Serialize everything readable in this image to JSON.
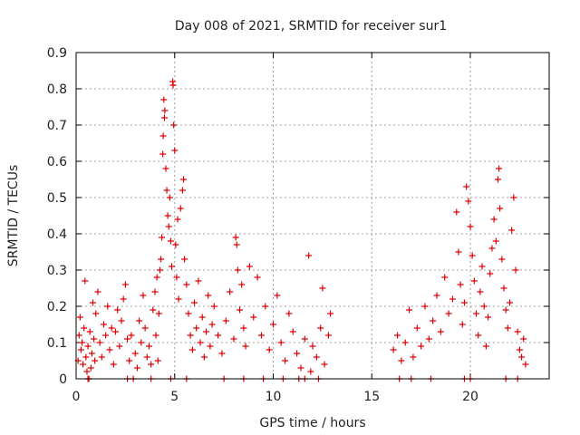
{
  "chart_data": {
    "type": "scatter",
    "title": "Day 008 of 2021, SRMTID for receiver sur1",
    "xlabel": "GPS time / hours",
    "ylabel": "SRMTID / TECUs",
    "xlim": [
      0,
      24
    ],
    "ylim": [
      0,
      0.9
    ],
    "x_ticks": [
      0,
      5,
      10,
      15,
      20
    ],
    "x_tick_labels": [
      "0",
      "5",
      "10",
      "15",
      "20"
    ],
    "y_ticks": [
      0,
      0.1,
      0.2,
      0.3,
      0.4,
      0.5,
      0.6,
      0.7,
      0.8,
      0.9
    ],
    "y_tick_labels": [
      "0",
      "0.1",
      "0.2",
      "0.3",
      "0.4",
      "0.5",
      "0.6",
      "0.7",
      "0.8",
      "0.9"
    ],
    "grid": true,
    "marker": "+",
    "marker_color": "#e00000",
    "series": [
      {
        "name": "SRMTID",
        "points": [
          [
            0.1,
            0.05
          ],
          [
            0.15,
            0.12
          ],
          [
            0.2,
            0.17
          ],
          [
            0.25,
            0.08
          ],
          [
            0.3,
            0.1
          ],
          [
            0.35,
            0.04
          ],
          [
            0.4,
            0.14
          ],
          [
            0.45,
            0.27
          ],
          [
            0.5,
            0.06
          ],
          [
            0.55,
            0.02
          ],
          [
            0.6,
            0.09
          ],
          [
            0.65,
            0.0
          ],
          [
            0.7,
            0.13
          ],
          [
            0.75,
            0.03
          ],
          [
            0.8,
            0.07
          ],
          [
            0.85,
            0.21
          ],
          [
            0.9,
            0.11
          ],
          [
            0.95,
            0.05
          ],
          [
            1.0,
            0.18
          ],
          [
            1.1,
            0.24
          ],
          [
            1.2,
            0.1
          ],
          [
            1.3,
            0.06
          ],
          [
            1.4,
            0.15
          ],
          [
            1.5,
            0.12
          ],
          [
            1.6,
            0.2
          ],
          [
            1.7,
            0.08
          ],
          [
            1.8,
            0.14
          ],
          [
            1.9,
            0.04
          ],
          [
            2.0,
            0.13
          ],
          [
            2.1,
            0.19
          ],
          [
            2.2,
            0.09
          ],
          [
            2.3,
            0.16
          ],
          [
            2.4,
            0.22
          ],
          [
            2.5,
            0.26
          ],
          [
            2.6,
            0.11
          ],
          [
            2.7,
            0.05
          ],
          [
            2.8,
            0.12
          ],
          [
            2.9,
            0.0
          ],
          [
            3.0,
            0.07
          ],
          [
            3.1,
            0.03
          ],
          [
            3.2,
            0.16
          ],
          [
            3.3,
            0.1
          ],
          [
            3.4,
            0.23
          ],
          [
            3.5,
            0.14
          ],
          [
            3.6,
            0.06
          ],
          [
            3.7,
            0.09
          ],
          [
            3.8,
            0.04
          ],
          [
            3.9,
            0.19
          ],
          [
            4.0,
            0.24
          ],
          [
            4.05,
            0.12
          ],
          [
            4.1,
            0.28
          ],
          [
            4.15,
            0.05
          ],
          [
            4.2,
            0.18
          ],
          [
            4.25,
            0.3
          ],
          [
            4.3,
            0.33
          ],
          [
            4.35,
            0.39
          ],
          [
            4.4,
            0.62
          ],
          [
            4.42,
            0.67
          ],
          [
            4.45,
            0.77
          ],
          [
            4.48,
            0.72
          ],
          [
            4.5,
            0.74
          ],
          [
            4.55,
            0.58
          ],
          [
            4.6,
            0.52
          ],
          [
            4.65,
            0.45
          ],
          [
            4.7,
            0.42
          ],
          [
            4.75,
            0.5
          ],
          [
            4.8,
            0.38
          ],
          [
            4.85,
            0.31
          ],
          [
            4.9,
            0.82
          ],
          [
            4.92,
            0.81
          ],
          [
            4.95,
            0.7
          ],
          [
            5.0,
            0.63
          ],
          [
            5.05,
            0.37
          ],
          [
            5.1,
            0.28
          ],
          [
            5.15,
            0.44
          ],
          [
            5.2,
            0.22
          ],
          [
            5.3,
            0.47
          ],
          [
            5.4,
            0.52
          ],
          [
            5.45,
            0.55
          ],
          [
            5.5,
            0.33
          ],
          [
            5.6,
            0.26
          ],
          [
            5.7,
            0.18
          ],
          [
            5.8,
            0.12
          ],
          [
            5.9,
            0.08
          ],
          [
            6.0,
            0.21
          ],
          [
            6.1,
            0.14
          ],
          [
            6.2,
            0.27
          ],
          [
            6.3,
            0.1
          ],
          [
            6.4,
            0.17
          ],
          [
            6.5,
            0.06
          ],
          [
            6.6,
            0.13
          ],
          [
            6.7,
            0.23
          ],
          [
            6.8,
            0.09
          ],
          [
            6.9,
            0.15
          ],
          [
            7.0,
            0.2
          ],
          [
            7.2,
            0.12
          ],
          [
            7.4,
            0.07
          ],
          [
            7.6,
            0.16
          ],
          [
            7.8,
            0.24
          ],
          [
            8.0,
            0.11
          ],
          [
            8.1,
            0.39
          ],
          [
            8.15,
            0.37
          ],
          [
            8.2,
            0.3
          ],
          [
            8.3,
            0.19
          ],
          [
            8.4,
            0.26
          ],
          [
            8.5,
            0.14
          ],
          [
            8.6,
            0.09
          ],
          [
            8.8,
            0.31
          ],
          [
            9.0,
            0.17
          ],
          [
            9.2,
            0.28
          ],
          [
            9.4,
            0.12
          ],
          [
            9.6,
            0.2
          ],
          [
            9.8,
            0.08
          ],
          [
            10.0,
            0.15
          ],
          [
            10.2,
            0.23
          ],
          [
            10.4,
            0.1
          ],
          [
            10.6,
            0.05
          ],
          [
            10.8,
            0.18
          ],
          [
            11.0,
            0.13
          ],
          [
            11.2,
            0.07
          ],
          [
            11.4,
            0.03
          ],
          [
            11.6,
            0.11
          ],
          [
            11.8,
            0.34
          ],
          [
            11.9,
            0.02
          ],
          [
            12.0,
            0.09
          ],
          [
            12.2,
            0.06
          ],
          [
            12.4,
            0.14
          ],
          [
            12.5,
            0.25
          ],
          [
            12.6,
            0.04
          ],
          [
            12.8,
            0.12
          ],
          [
            12.9,
            0.18
          ],
          [
            16.1,
            0.08
          ],
          [
            16.3,
            0.12
          ],
          [
            16.5,
            0.05
          ],
          [
            16.7,
            0.1
          ],
          [
            16.9,
            0.19
          ],
          [
            17.1,
            0.06
          ],
          [
            17.3,
            0.14
          ],
          [
            17.5,
            0.09
          ],
          [
            17.7,
            0.2
          ],
          [
            17.9,
            0.11
          ],
          [
            18.1,
            0.16
          ],
          [
            18.3,
            0.23
          ],
          [
            18.5,
            0.13
          ],
          [
            18.7,
            0.28
          ],
          [
            18.9,
            0.18
          ],
          [
            19.1,
            0.22
          ],
          [
            19.3,
            0.46
          ],
          [
            19.4,
            0.35
          ],
          [
            19.5,
            0.26
          ],
          [
            19.6,
            0.15
          ],
          [
            19.7,
            0.21
          ],
          [
            19.8,
            0.53
          ],
          [
            19.9,
            0.49
          ],
          [
            20.0,
            0.42
          ],
          [
            20.1,
            0.34
          ],
          [
            20.2,
            0.27
          ],
          [
            20.3,
            0.18
          ],
          [
            20.4,
            0.12
          ],
          [
            20.5,
            0.24
          ],
          [
            20.6,
            0.31
          ],
          [
            20.7,
            0.2
          ],
          [
            20.8,
            0.09
          ],
          [
            20.9,
            0.17
          ],
          [
            21.0,
            0.29
          ],
          [
            21.1,
            0.36
          ],
          [
            21.2,
            0.44
          ],
          [
            21.3,
            0.38
          ],
          [
            21.4,
            0.55
          ],
          [
            21.45,
            0.58
          ],
          [
            21.5,
            0.47
          ],
          [
            21.6,
            0.33
          ],
          [
            21.7,
            0.25
          ],
          [
            21.8,
            0.19
          ],
          [
            21.9,
            0.14
          ],
          [
            22.0,
            0.21
          ],
          [
            22.1,
            0.41
          ],
          [
            22.2,
            0.5
          ],
          [
            22.3,
            0.3
          ],
          [
            22.4,
            0.13
          ],
          [
            22.5,
            0.08
          ],
          [
            22.6,
            0.06
          ],
          [
            22.7,
            0.11
          ],
          [
            22.8,
            0.04
          ],
          [
            0.6,
            0.0
          ],
          [
            2.6,
            0.0
          ],
          [
            3.8,
            0.0
          ],
          [
            4.8,
            0.0
          ],
          [
            5.6,
            0.0
          ],
          [
            7.5,
            0.0
          ],
          [
            8.5,
            0.0
          ],
          [
            9.5,
            0.0
          ],
          [
            10.5,
            0.0
          ],
          [
            11.3,
            0.0
          ],
          [
            11.6,
            0.0
          ],
          [
            12.3,
            0.0
          ],
          [
            16.4,
            0.0
          ],
          [
            17.0,
            0.0
          ],
          [
            18.0,
            0.0
          ],
          [
            19.7,
            0.0
          ],
          [
            20.0,
            0.0
          ],
          [
            21.8,
            0.0
          ],
          [
            22.4,
            0.0
          ]
        ]
      }
    ]
  }
}
